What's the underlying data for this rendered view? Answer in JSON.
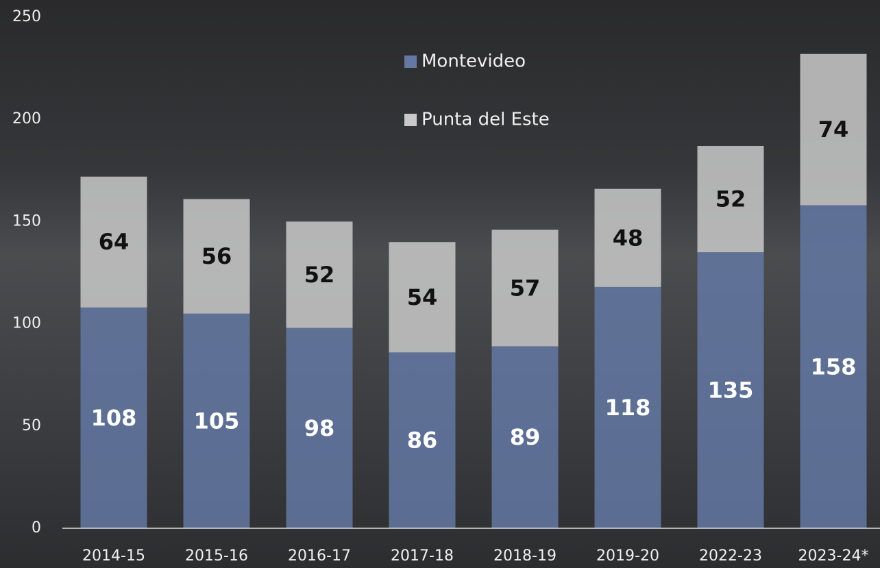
{
  "chart_data": {
    "type": "stacked_bar",
    "categories": [
      "2014-15",
      "2015-16",
      "2016-17",
      "2017-18",
      "2018-19",
      "2019-20",
      "2022-23",
      "2023-24*"
    ],
    "series": [
      {
        "name": "Montevideo",
        "color": "#6478a3",
        "values": [
          108,
          105,
          98,
          86,
          89,
          118,
          135,
          158
        ]
      },
      {
        "name": "Punta del Este",
        "color": "#c9c9c9",
        "values": [
          64,
          56,
          52,
          54,
          57,
          48,
          52,
          74
        ]
      }
    ],
    "ylim": [
      0,
      250
    ],
    "yticks": [
      0,
      50,
      100,
      150,
      200,
      250
    ]
  }
}
